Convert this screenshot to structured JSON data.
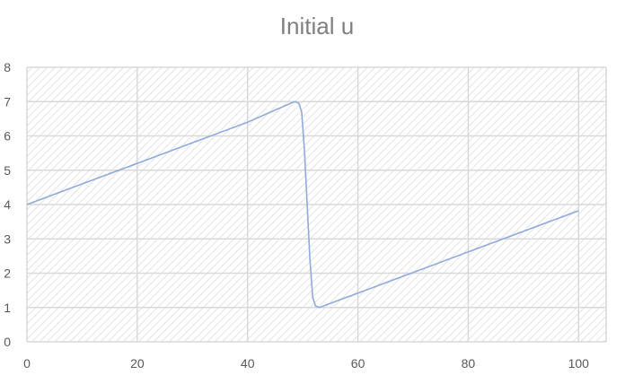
{
  "chart_data": {
    "type": "line",
    "title": "Initial u",
    "xlabel": "",
    "ylabel": "",
    "xlim": [
      0,
      105
    ],
    "ylim": [
      0,
      8
    ],
    "xticks": [
      0,
      20,
      40,
      60,
      80,
      100
    ],
    "yticks": [
      0,
      1,
      2,
      3,
      4,
      5,
      6,
      7,
      8
    ],
    "grid": true,
    "legend": "none",
    "colors": {
      "line": "#8faadc",
      "grid": "#d9d9d9",
      "plot_hatch": "#e6e6e6",
      "title": "#7f7f7f",
      "ticks": "#595959"
    },
    "series": [
      {
        "x": [
          0,
          10,
          20,
          30,
          40,
          48.5,
          49.3,
          49.8,
          50.3,
          50.8,
          51.3,
          51.8,
          52.3,
          53,
          60,
          70,
          80,
          90,
          100
        ],
        "values": [
          4,
          4.6,
          5.2,
          5.8,
          6.4,
          7.0,
          6.95,
          6.7,
          5.6,
          4.0,
          2.4,
          1.3,
          1.05,
          1.0,
          1.42,
          2.02,
          2.62,
          3.22,
          3.82
        ]
      }
    ]
  }
}
